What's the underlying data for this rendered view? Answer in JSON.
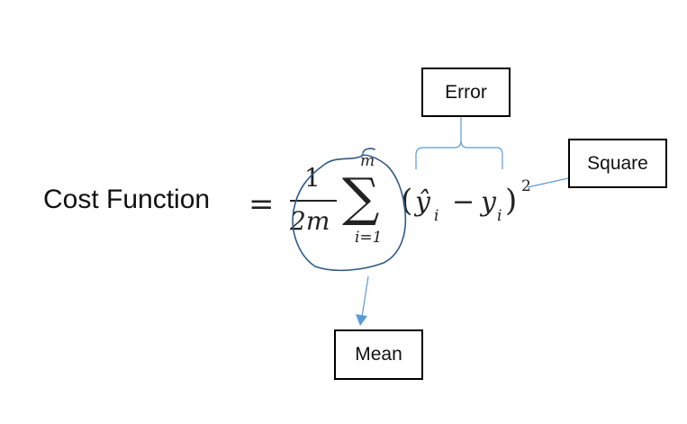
{
  "title": "Cost Function",
  "formula": {
    "equals": "=",
    "numerator": "1",
    "denominator": "2m",
    "sum_symbol": "∑",
    "sum_upper": "m",
    "sum_lower": "i=1",
    "open_paren": "(",
    "yhat": "ŷ",
    "sub_i_1": "i",
    "minus": "−",
    "y": "y",
    "sub_i_2": "i",
    "close_paren": ")",
    "exponent": "2"
  },
  "annotations": {
    "error": "Error",
    "square": "Square",
    "mean": "Mean"
  },
  "colors": {
    "annotation_line": "#5b9bd5",
    "circle_stroke": "#2e5a88",
    "text": "#111111"
  }
}
